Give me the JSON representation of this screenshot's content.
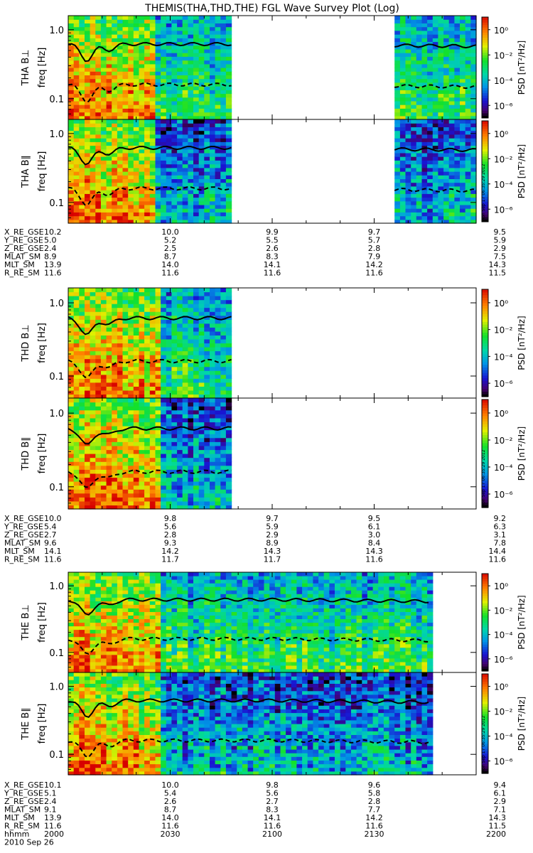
{
  "title": "THEMIS(THA,THD,THE) FGL Wave Survey Plot (Log)",
  "chart_data": {
    "type": "heatmap",
    "xlim_hhmm": [
      "2000",
      "2200"
    ],
    "ylim_hz": [
      0.05,
      1.6
    ],
    "y_scale": "log",
    "ytick_labels": [
      "1.0",
      "0.1"
    ],
    "ylabel": "freq [Hz]",
    "colorbar": {
      "label": "PSD [nT²/Hz]",
      "scale": "log",
      "range_exponent": [
        -7,
        1
      ],
      "tick_labels": [
        "10⁰",
        "10⁻²",
        "10⁻⁴",
        "10⁻⁶"
      ]
    },
    "stamp": "Mon Sep 17 06:35:29 2012",
    "panels": [
      {
        "name": "THA B⊥",
        "probe": "THA",
        "comp": "perp",
        "data_segments_min": [
          [
            0,
            48
          ],
          [
            96,
            120
          ]
        ],
        "blue_start_min": 25
      },
      {
        "name": "THA B∥",
        "probe": "THA",
        "comp": "par",
        "data_segments_min": [
          [
            0,
            48
          ],
          [
            96,
            120
          ]
        ],
        "blue_start_min": 25
      },
      {
        "name": "THD B⊥",
        "probe": "THD",
        "comp": "perp",
        "data_segments_min": [
          [
            0,
            48
          ]
        ],
        "blue_start_min": 27
      },
      {
        "name": "THD B∥",
        "probe": "THD",
        "comp": "par",
        "data_segments_min": [
          [
            0,
            48
          ]
        ],
        "blue_start_min": 27
      },
      {
        "name": "THE B⊥",
        "probe": "THE",
        "comp": "perp",
        "data_segments_min": [
          [
            0,
            106
          ]
        ],
        "blue_start_min": 27
      },
      {
        "name": "THE B∥",
        "probe": "THE",
        "comp": "par",
        "data_segments_min": [
          [
            0,
            106
          ]
        ],
        "blue_start_min": 27
      }
    ],
    "ephemeris": [
      {
        "probe": "THA",
        "columns": [
          [
            "10.2",
            "10.0",
            "9.9",
            "9.7",
            "9.5"
          ],
          [
            "5.0",
            "5.2",
            "5.5",
            "5.7",
            "5.9"
          ],
          [
            "2.4",
            "2.5",
            "2.6",
            "2.8",
            "2.9"
          ],
          [
            "8.9",
            "8.7",
            "8.3",
            "7.9",
            "7.5"
          ],
          [
            "13.9",
            "14.0",
            "14.1",
            "14.2",
            "14.3"
          ],
          [
            "11.6",
            "11.6",
            "11.6",
            "11.6",
            "11.5"
          ]
        ]
      },
      {
        "probe": "THD",
        "columns": [
          [
            "10.0",
            "9.8",
            "9.7",
            "9.5",
            "9.2"
          ],
          [
            "5.4",
            "5.6",
            "5.9",
            "6.1",
            "6.3"
          ],
          [
            "2.7",
            "2.8",
            "2.9",
            "3.0",
            "3.1"
          ],
          [
            "9.6",
            "9.3",
            "8.9",
            "8.4",
            "7.8"
          ],
          [
            "14.1",
            "14.2",
            "14.3",
            "14.3",
            "14.4"
          ],
          [
            "11.6",
            "11.7",
            "11.7",
            "11.6",
            "11.6"
          ]
        ]
      },
      {
        "probe": "THE",
        "columns": [
          [
            "10.1",
            "10.0",
            "9.8",
            "9.6",
            "9.4"
          ],
          [
            "5.1",
            "5.4",
            "5.6",
            "5.8",
            "6.1"
          ],
          [
            "2.4",
            "2.6",
            "2.7",
            "2.8",
            "2.9"
          ],
          [
            "9.1",
            "8.7",
            "8.3",
            "7.7",
            "7.1"
          ],
          [
            "13.9",
            "14.0",
            "14.1",
            "14.2",
            "14.3"
          ],
          [
            "11.6",
            "11.6",
            "11.6",
            "11.6",
            "11.5"
          ]
        ]
      }
    ],
    "ephemeris_labels": [
      "X_RE_GSE",
      "Y_RE_GSE",
      "Z_RE_GSE",
      "MLAT_SM",
      "MLT_SM",
      "R_RE_SM"
    ],
    "time_row": {
      "label": "hhmm",
      "values": [
        "2000",
        "2030",
        "2100",
        "2130",
        "2200"
      ]
    },
    "date": "2010 Sep 26"
  }
}
